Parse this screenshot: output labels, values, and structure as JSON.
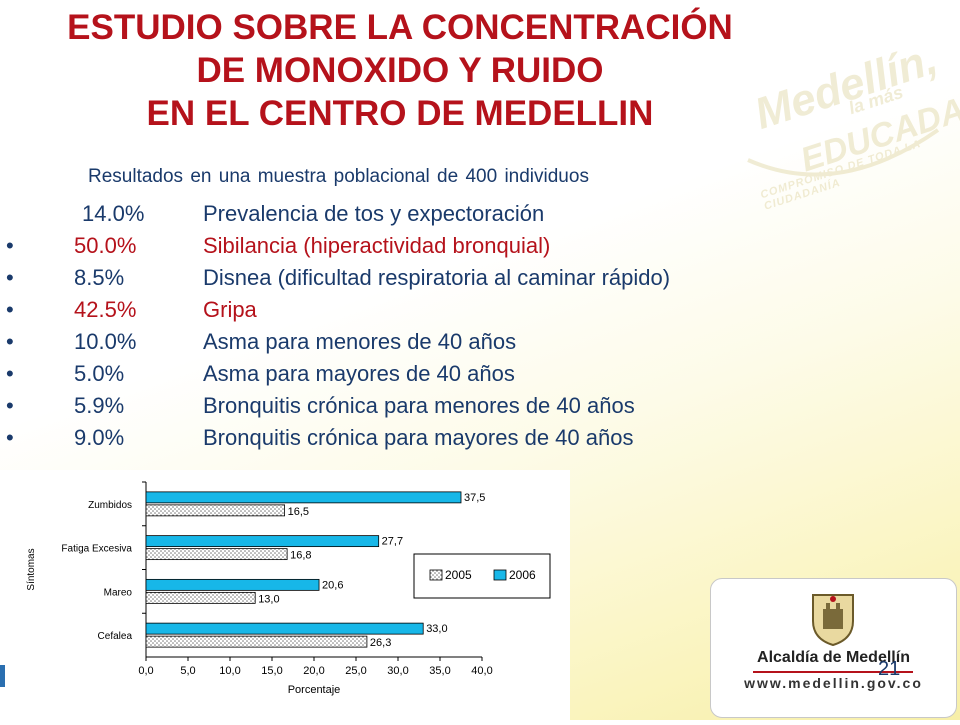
{
  "title": {
    "line1": "ESTUDIO SOBRE LA CONCENTRACIÓN",
    "line2": "DE MONOXIDO Y RUIDO",
    "line3": "EN EL CENTRO DE MEDELLIN"
  },
  "subtitle": "Resultados en una muestra poblacional de 400 individuos",
  "items": [
    {
      "bullet": "",
      "pct": "14.0%",
      "desc": "Prevalencia de tos y expectoración"
    },
    {
      "bullet": "•",
      "pct": "50.0%",
      "desc": "Sibilancia (hiperactividad bronquial)"
    },
    {
      "bullet": "•",
      "pct": "8.5%",
      "desc": "Disnea (dificultad respiratoria al caminar rápido)"
    },
    {
      "bullet": "•",
      "pct": "42.5%",
      "desc": "Gripa"
    },
    {
      "bullet": "•",
      "pct": "10.0%",
      "desc": "Asma para menores de 40 años"
    },
    {
      "bullet": "•",
      "pct": "5.0%",
      "desc": "Asma para mayores de 40 años"
    },
    {
      "bullet": "•",
      "pct": "5.9%",
      "desc": "Bronquitis crónica para menores de 40 años"
    },
    {
      "bullet": "•",
      "pct": "9.0%",
      "desc": "Bronquitis crónica para mayores de 40 años"
    }
  ],
  "colors": {
    "title": "#b5121b",
    "text": "#1a3a6b",
    "series_2005": "#d9d9d9",
    "series_2006": "#17b7e8"
  },
  "watermark": {
    "line1": "Medellín,",
    "line2": "la más",
    "line3": "EDUCADA",
    "line4": "COMPROMISO DE TODA LA CIUDADANÍA"
  },
  "chart_data": {
    "type": "bar",
    "orientation": "horizontal",
    "categories": [
      "Zumbidos",
      "Fatiga Excesiva",
      "Mareo",
      "Cefalea"
    ],
    "series": [
      {
        "name": "2006",
        "values": [
          37.5,
          27.7,
          20.6,
          33.0
        ],
        "labels": [
          "37,5",
          "27,7",
          "20,6",
          "33,0"
        ]
      },
      {
        "name": "2005",
        "values": [
          16.5,
          16.8,
          13.0,
          26.3
        ],
        "labels": [
          "16,5",
          "16,8",
          "13,0",
          "26,3"
        ]
      }
    ],
    "legend_order": [
      "2005",
      "2006"
    ],
    "xlabel": "Porcentaje",
    "ylabel": "Síntomas",
    "xlim": [
      0,
      40
    ],
    "xticks": [
      "0,0",
      "5,0",
      "10,0",
      "15,0",
      "20,0",
      "25,0",
      "30,0",
      "35,0",
      "40,0"
    ],
    "legend_position": "right",
    "grid": false
  },
  "logo": {
    "name": "Alcaldía de Medellín",
    "url": "www.medellin.gov.co"
  },
  "page_number": "21"
}
